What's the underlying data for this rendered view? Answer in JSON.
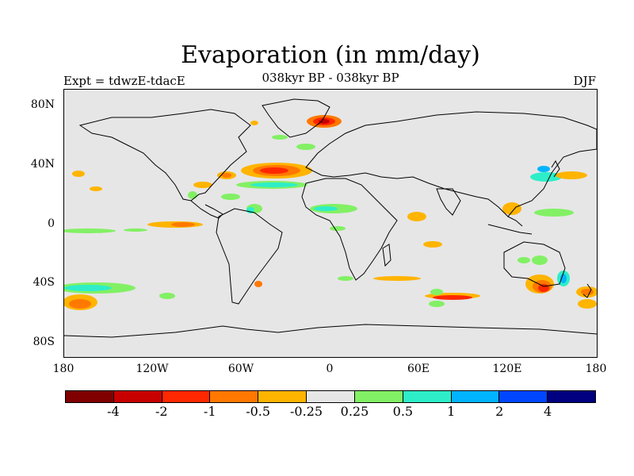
{
  "title": "Evaporation (in mm/day)",
  "subtitle": "038kyr BP - 038kyr BP",
  "left_label": "Expt = tdwzE-tdacE",
  "right_label": "DJF",
  "lat_labels": [
    "80N",
    "40N",
    "0",
    "40S",
    "80S"
  ],
  "lon_labels": [
    "180",
    "120W",
    "60W",
    "0",
    "60E",
    "120E",
    "180"
  ],
  "colorbar": {
    "colors": [
      "#800000",
      "#c80000",
      "#ff2800",
      "#ff7800",
      "#ffb400",
      "#e6e6e6",
      "#82f064",
      "#2deec8",
      "#00b4ff",
      "#0046ff",
      "#000080"
    ],
    "labels": [
      "-4",
      "-2",
      "-1",
      "-0.5",
      "-0.25",
      "0.25",
      "0.5",
      "1",
      "2",
      "4"
    ]
  }
}
